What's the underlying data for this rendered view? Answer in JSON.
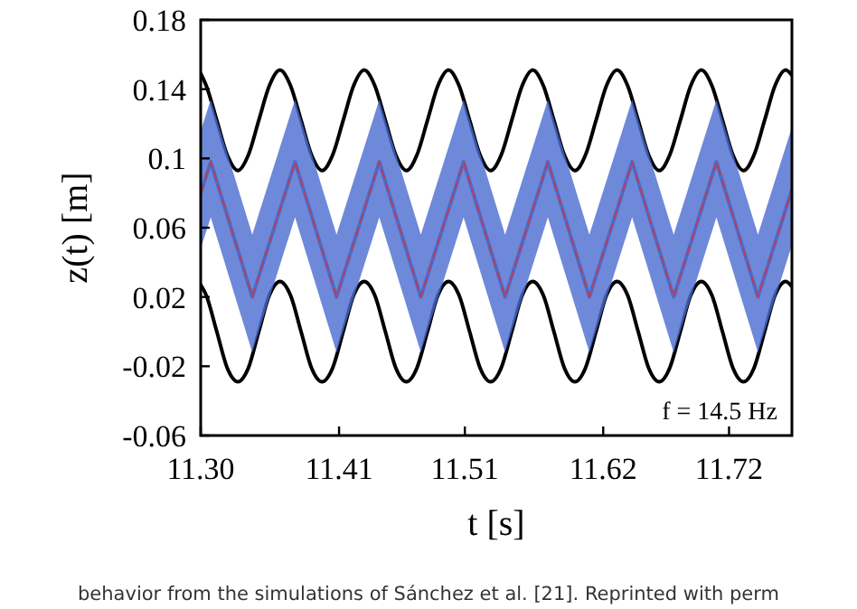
{
  "chart_data": {
    "type": "line",
    "xlabel": "t [s]",
    "ylabel": "z(t) [m]",
    "xlim": [
      11.3,
      11.77
    ],
    "ylim": [
      -0.06,
      0.18
    ],
    "xticks": [
      {
        "value": 11.3,
        "label": "11.30"
      },
      11.41,
      11.51,
      11.62,
      11.72
    ],
    "yticks": [
      -0.06,
      -0.02,
      0.02,
      0.06,
      0.1,
      0.14,
      0.18
    ],
    "grid": false,
    "marker": "none",
    "x": [
      11.3,
      11.3044,
      11.3128,
      11.3211,
      11.3295,
      11.3379,
      11.3462,
      11.3546,
      11.363,
      11.3714,
      11.3798,
      11.3881,
      11.3965,
      11.4049,
      11.4133,
      11.4216,
      11.43,
      11.4384,
      11.4468,
      11.4551,
      11.4635,
      11.4719,
      11.4803,
      11.4886,
      11.497,
      11.5054,
      11.5138,
      11.5221,
      11.5305,
      11.5389,
      11.5473,
      11.5556,
      11.564,
      11.5724,
      11.5808,
      11.5891,
      11.5975,
      11.6059,
      11.6143,
      11.6226,
      11.631,
      11.6394,
      11.6478,
      11.6561,
      11.6645,
      11.6729,
      11.6813,
      11.6896,
      11.698,
      11.7064,
      11.7148,
      11.7231,
      11.7315,
      11.7399,
      11.7483,
      11.7566,
      11.765,
      11.77
    ],
    "series": [
      {
        "color": "#000000",
        "line_style": "solid",
        "values": [
          0.149,
          0.142,
          0.122,
          0.102,
          0.093,
          0.102,
          0.122,
          0.142,
          0.151,
          0.142,
          0.122,
          0.102,
          0.093,
          0.102,
          0.122,
          0.142,
          0.151,
          0.142,
          0.122,
          0.102,
          0.093,
          0.102,
          0.122,
          0.142,
          0.151,
          0.142,
          0.122,
          0.102,
          0.093,
          0.102,
          0.122,
          0.142,
          0.151,
          0.142,
          0.122,
          0.102,
          0.093,
          0.102,
          0.122,
          0.142,
          0.151,
          0.142,
          0.122,
          0.102,
          0.093,
          0.102,
          0.122,
          0.142,
          0.151,
          0.142,
          0.122,
          0.102,
          0.093,
          0.102,
          0.122,
          0.142,
          0.151,
          0.148
        ]
      },
      {
        "color": "#000000",
        "line_style": "solid",
        "values": [
          0.027,
          0.021,
          0,
          -0.021,
          -0.029,
          -0.021,
          0,
          0.021,
          0.029,
          0.021,
          0,
          -0.021,
          -0.029,
          -0.021,
          0,
          0.021,
          0.029,
          0.021,
          0,
          -0.021,
          -0.029,
          -0.021,
          0,
          0.021,
          0.029,
          0.021,
          0,
          -0.021,
          -0.029,
          -0.021,
          0,
          0.021,
          0.029,
          0.021,
          0,
          -0.021,
          -0.029,
          -0.021,
          0,
          0.021,
          0.029,
          0.021,
          0,
          -0.021,
          -0.029,
          -0.021,
          0,
          0.021,
          0.029,
          0.021,
          0,
          -0.021,
          -0.029,
          -0.021,
          0,
          0.021,
          0.029,
          0.026
        ]
      },
      {
        "color": "#4a6bcf",
        "line_style": "solid",
        "x": [
          11.3,
          11.308,
          11.341,
          11.375,
          11.408,
          11.442,
          11.475,
          11.509,
          11.542,
          11.576,
          11.609,
          11.643,
          11.676,
          11.71,
          11.743,
          11.77
        ],
        "values": [
          0.08,
          0.098,
          0.02,
          0.098,
          0.02,
          0.098,
          0.02,
          0.098,
          0.02,
          0.098,
          0.02,
          0.098,
          0.02,
          0.098,
          0.02,
          0.082
        ],
        "upper": [
          0.116,
          0.134,
          0.056,
          0.134,
          0.056,
          0.134,
          0.056,
          0.134,
          0.056,
          0.134,
          0.056,
          0.134,
          0.056,
          0.134,
          0.056,
          0.118
        ],
        "lower": [
          0.048,
          0.066,
          -0.012,
          0.066,
          -0.012,
          0.066,
          -0.012,
          0.066,
          -0.012,
          0.066,
          -0.012,
          0.066,
          -0.012,
          0.066,
          -0.012,
          0.05
        ]
      },
      {
        "color": "#b5405a",
        "line_style": "dashed",
        "x": [
          11.3,
          11.308,
          11.341,
          11.375,
          11.408,
          11.442,
          11.475,
          11.509,
          11.542,
          11.576,
          11.609,
          11.643,
          11.676,
          11.71,
          11.743,
          11.77
        ],
        "values": [
          0.08,
          0.098,
          0.02,
          0.098,
          0.02,
          0.098,
          0.02,
          0.098,
          0.02,
          0.098,
          0.02,
          0.098,
          0.02,
          0.098,
          0.02,
          0.082
        ]
      }
    ],
    "annotations": [
      "f = 14.5 Hz",
      "behavior from the simulations of Sánchez et al. [21]. Reprinted with perm"
    ]
  }
}
